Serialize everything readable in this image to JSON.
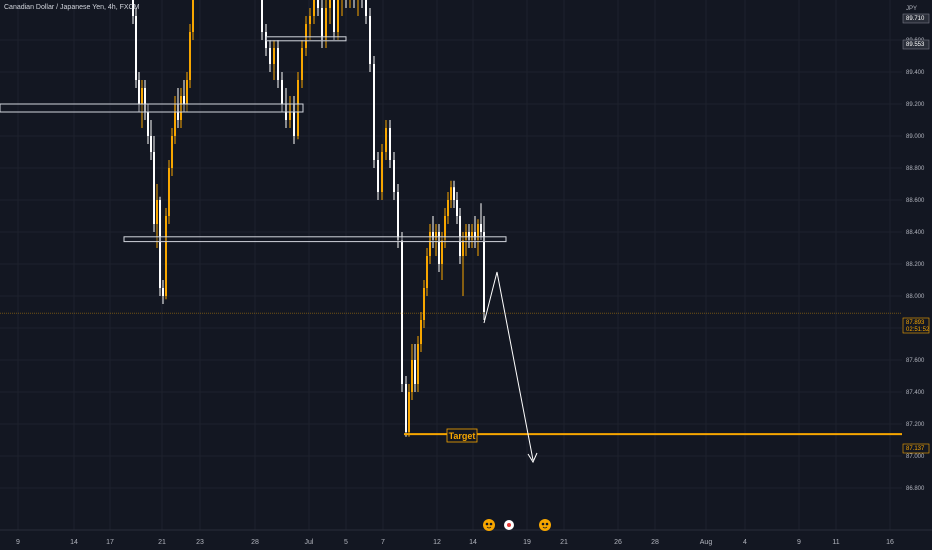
{
  "header": {
    "symbol_title": "Canadian Dollar / Japanese Yen, 4h, FXCM"
  },
  "currency_label": "JPY",
  "colors": {
    "background": "#131722",
    "up_candle": "#f7a600",
    "down_candle": "#ffffff",
    "target_line": "#f7a600",
    "grid": "#1e222d",
    "zone_fill": "#131722",
    "zone_border": "#d1d4dc"
  },
  "chart_data": {
    "type": "candlestick",
    "title": "Canadian Dollar / Japanese Yen, 4h, FXCM",
    "xlabel": "",
    "ylabel": "",
    "ylim": [
      86.75,
      89.85
    ],
    "grid": true,
    "y_ticks": [
      "89.600",
      "89.400",
      "89.200",
      "89.000",
      "88.800",
      "88.600",
      "88.400",
      "88.200",
      "88.000",
      "87.800",
      "87.600",
      "87.400",
      "87.200",
      "87.000",
      "86.800"
    ],
    "x_ticks": [
      "9",
      "14",
      "17",
      "21",
      "23",
      "28",
      "Jul",
      "5",
      "7",
      "12",
      "14",
      "19",
      "21",
      "26",
      "28",
      "Aug",
      "4",
      "9",
      "11",
      "16"
    ],
    "price_tags": [
      {
        "value": "89.710",
        "style": "dark"
      },
      {
        "value": "89.553",
        "style": "dark"
      },
      {
        "value": "87.893",
        "sub": "02:51:52",
        "style": "gold"
      },
      {
        "value": "87.137",
        "style": "gold"
      }
    ],
    "current_price": 87.893,
    "target_price": 87.137,
    "target_label": "Target",
    "zones": [
      {
        "name": "resistance-top",
        "low": 89.595,
        "high": 89.62
      },
      {
        "name": "resistance-mid",
        "low": 89.15,
        "high": 89.2
      },
      {
        "name": "support",
        "low": 88.34,
        "high": 88.37
      }
    ],
    "candles": [
      [
        89.95,
        89.95,
        89.55,
        89.6
      ],
      [
        89.6,
        89.65,
        89.15,
        89.2
      ],
      [
        89.2,
        89.4,
        89.1,
        89.3
      ],
      [
        89.3,
        89.32,
        88.95,
        89.05
      ],
      [
        89.05,
        89.1,
        88.7,
        88.8
      ],
      [
        88.8,
        88.85,
        88.35,
        88.4
      ],
      [
        88.4,
        88.65,
        87.95,
        88.05
      ],
      [
        88.05,
        88.7,
        88.0,
        88.6
      ],
      [
        88.6,
        89.0,
        88.55,
        88.95
      ],
      [
        88.95,
        89.3,
        88.9,
        89.25
      ],
      [
        89.25,
        89.4,
        89.1,
        89.15
      ],
      [
        89.15,
        89.35,
        89.05,
        89.3
      ],
      [
        89.3,
        89.7,
        89.25,
        89.65
      ],
      [
        89.65,
        89.95,
        89.6,
        89.9
      ]
    ]
  },
  "bottom_icons": [
    "emoji-icon-1",
    "record-icon",
    "emoji-icon-2"
  ]
}
